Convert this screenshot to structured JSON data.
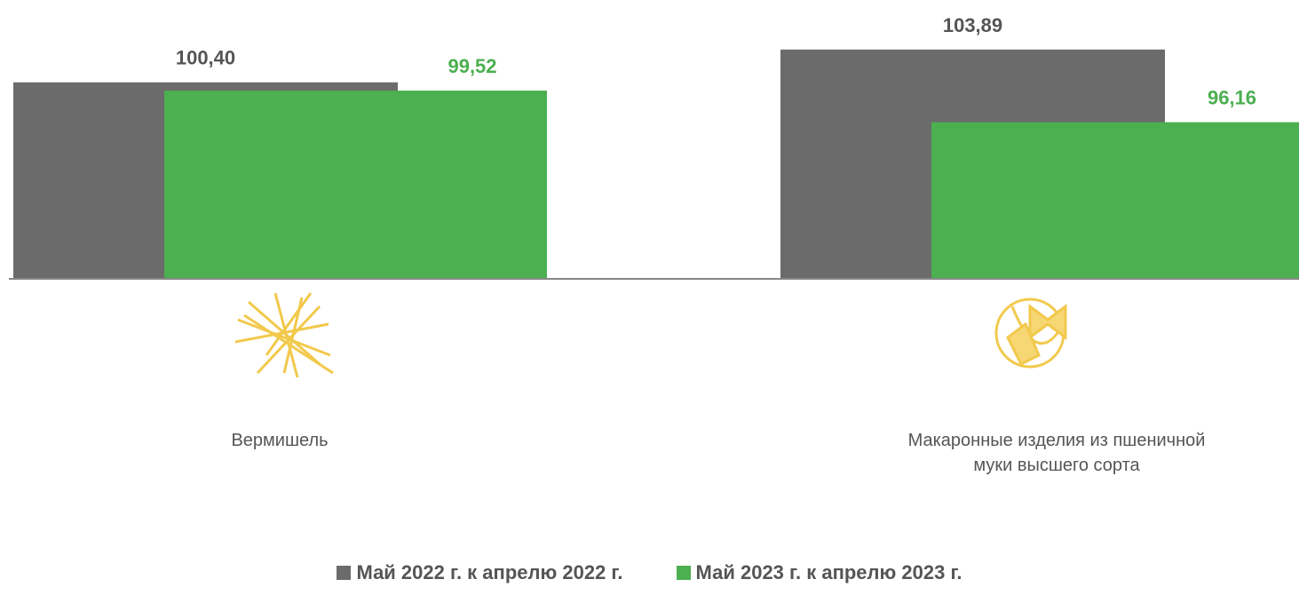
{
  "chart_data": {
    "type": "bar",
    "categories": [
      "Вермишель",
      "Макаронные изделия из пшеничной муки высшего сорта"
    ],
    "series": [
      {
        "name": "Май 2022 г. к апрелю 2022 г.",
        "color": "#6b6b6b",
        "values": [
          100.4,
          103.89
        ],
        "value_labels": [
          "100,40",
          "103,89"
        ]
      },
      {
        "name": "Май 2023 г. к апрелю 2023 г.",
        "color": "#4caf50",
        "values": [
          99.52,
          96.16
        ],
        "value_labels": [
          "99,52",
          "96,16"
        ]
      }
    ],
    "ylim": [
      79.5,
      105
    ]
  }
}
